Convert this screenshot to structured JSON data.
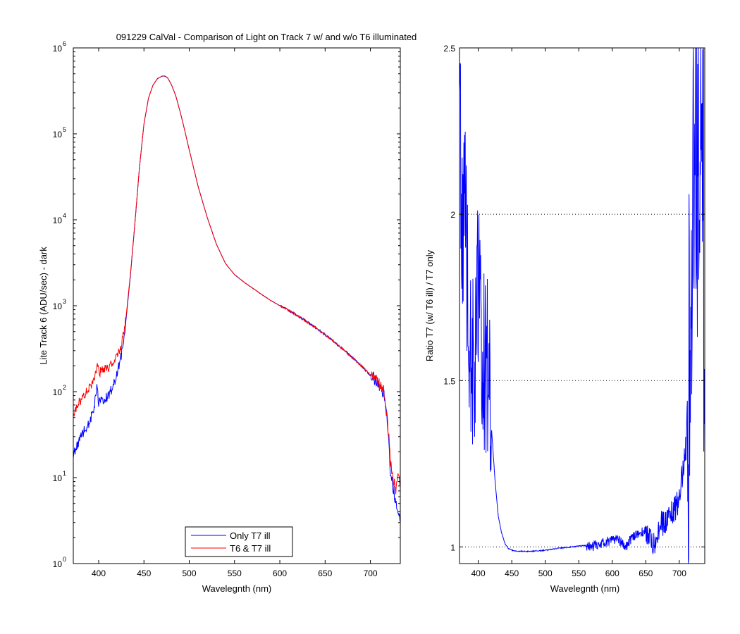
{
  "figure_title": "091229 CalVal - Comparison of Light on Track 7 w/ and w/o T6 illuminated",
  "colors": {
    "only_t7": "#0000ff",
    "t6_t7": "#ff0000",
    "axes": "#000000",
    "grid": "#000000"
  },
  "chart_data": [
    {
      "type": "line",
      "xlabel": "Wavelegnth (nm)",
      "ylabel": "Lite Track 6 (ADU/sec) - dark",
      "xlim": [
        372,
        733
      ],
      "ylim": [
        1,
        1000000
      ],
      "yscale": "log",
      "xticks": [
        400,
        450,
        500,
        550,
        600,
        650,
        700
      ],
      "xtick_labels": [
        "400",
        "450",
        "500",
        "550",
        "600",
        "650",
        "700"
      ],
      "yticks": [
        1,
        10,
        100,
        1000,
        10000,
        100000,
        1000000
      ],
      "ytick_labels": [
        {
          "base": "10",
          "exp": "0"
        },
        {
          "base": "10",
          "exp": "1"
        },
        {
          "base": "10",
          "exp": "2"
        },
        {
          "base": "10",
          "exp": "3"
        },
        {
          "base": "10",
          "exp": "4"
        },
        {
          "base": "10",
          "exp": "5"
        },
        {
          "base": "10",
          "exp": "6"
        }
      ],
      "grid": false,
      "legend_position": "bottom-center",
      "series": [
        {
          "name": "Only T7 ill",
          "color": "#0000ff",
          "x": [
            372,
            380,
            390,
            395,
            398,
            400,
            405,
            410,
            415,
            420,
            425,
            430,
            435,
            440,
            445,
            450,
            455,
            460,
            465,
            470,
            473,
            476,
            480,
            485,
            490,
            495,
            500,
            510,
            520,
            530,
            540,
            550,
            560,
            570,
            580,
            590,
            600,
            610,
            620,
            630,
            640,
            650,
            660,
            670,
            680,
            690,
            700,
            705,
            710,
            715,
            718,
            720,
            722,
            725,
            728,
            730,
            733
          ],
          "y": [
            18,
            30,
            45,
            65,
            110,
            75,
            80,
            88,
            110,
            160,
            260,
            650,
            2200,
            9000,
            40000,
            130000,
            260000,
            370000,
            440000,
            470000,
            470000,
            450000,
            380000,
            280000,
            180000,
            110000,
            65000,
            24000,
            10500,
            5200,
            3100,
            2300,
            1900,
            1600,
            1350,
            1150,
            1000,
            880,
            760,
            650,
            550,
            460,
            380,
            310,
            250,
            200,
            155,
            140,
            120,
            95,
            60,
            30,
            12,
            8,
            5,
            4,
            3
          ]
        },
        {
          "name": "T6 & T7 ill",
          "color": "#ff0000",
          "x": [
            372,
            380,
            390,
            395,
            398,
            400,
            405,
            410,
            415,
            420,
            425,
            430,
            435,
            440,
            445,
            450,
            455,
            460,
            465,
            470,
            473,
            476,
            480,
            485,
            490,
            495,
            500,
            510,
            520,
            530,
            540,
            550,
            560,
            570,
            580,
            590,
            600,
            610,
            620,
            630,
            640,
            650,
            660,
            670,
            680,
            690,
            700,
            705,
            710,
            715,
            718,
            720,
            722,
            725,
            728,
            730,
            733
          ],
          "y": [
            55,
            80,
            110,
            140,
            200,
            170,
            175,
            185,
            210,
            250,
            330,
            700,
            2300,
            9200,
            40500,
            130000,
            260000,
            370000,
            440000,
            470000,
            470000,
            450000,
            380000,
            280000,
            180000,
            110000,
            65000,
            24000,
            10500,
            5200,
            3100,
            2300,
            1900,
            1600,
            1350,
            1150,
            1000,
            880,
            760,
            650,
            550,
            460,
            380,
            310,
            250,
            200,
            155,
            140,
            122,
            97,
            55,
            35,
            15,
            10,
            7,
            12,
            9
          ]
        }
      ]
    },
    {
      "type": "line",
      "xlabel": "Wavelegnth (nm)",
      "ylabel": "Ratio T7 (w/ T6 ill) / T7 only",
      "xlim": [
        372,
        738
      ],
      "ylim": [
        0.95,
        2.5
      ],
      "yscale": "linear",
      "xticks": [
        400,
        450,
        500,
        550,
        600,
        650,
        700
      ],
      "xtick_labels": [
        "400",
        "450",
        "500",
        "550",
        "600",
        "650",
        "700"
      ],
      "yticks": [
        1,
        1.5,
        2,
        2.5
      ],
      "ytick_labels": [
        "1",
        "1.5",
        "2",
        "2.5"
      ],
      "grid": "dotted-horizontal",
      "series": [
        {
          "color": "#0000ff",
          "x": [
            372,
            375,
            380,
            385,
            390,
            395,
            400,
            405,
            410,
            415,
            418,
            420,
            425,
            430,
            435,
            440,
            445,
            450,
            455,
            460,
            470,
            480,
            490,
            500,
            510,
            520,
            530,
            540,
            550,
            560,
            570,
            580,
            590,
            600,
            610,
            620,
            630,
            640,
            650,
            660,
            670,
            680,
            690,
            700,
            710,
            715,
            720,
            725,
            730,
            735,
            738
          ],
          "y": [
            2.5,
            1.9,
            2.1,
            1.7,
            1.6,
            1.5,
            1.8,
            1.6,
            1.55,
            1.55,
            1.5,
            1.35,
            1.2,
            1.09,
            1.04,
            1.01,
            0.995,
            0.99,
            0.988,
            0.987,
            0.987,
            0.987,
            0.988,
            0.99,
            0.993,
            0.996,
            0.998,
            1.0,
            1.003,
            1.005,
            1.0,
            1.01,
            1.015,
            1.02,
            1.02,
            1.0,
            1.03,
            1.04,
            1.05,
            1.0,
            1.06,
            1.08,
            1.1,
            1.15,
            1.3,
            1.6,
            2.2,
            2.5,
            1.8,
            2.4,
            1.5
          ]
        }
      ]
    }
  ]
}
